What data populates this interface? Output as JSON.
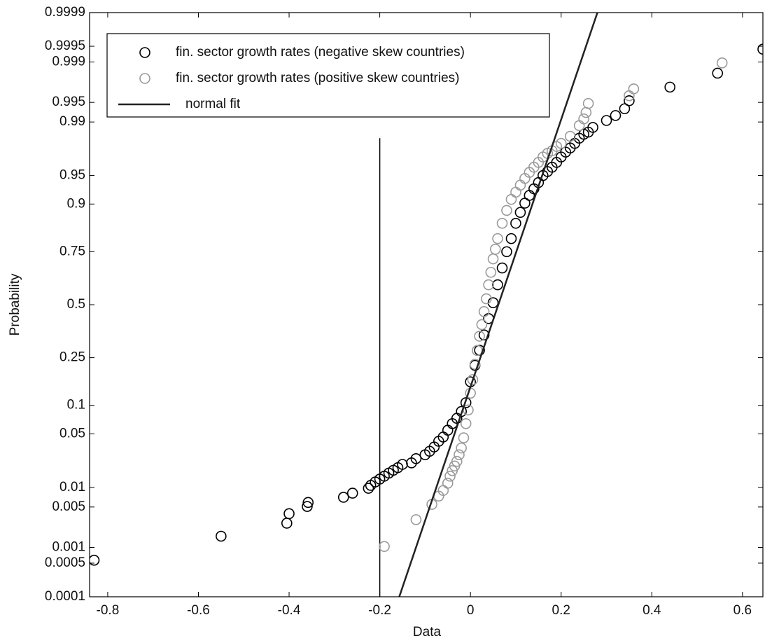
{
  "chart_data": {
    "type": "scatter",
    "yscale": "probit",
    "xlabel": "Data",
    "ylabel": "Probability",
    "xlim": [
      -0.84,
      0.645
    ],
    "xticks": [
      -0.8,
      -0.6,
      -0.4,
      -0.2,
      0,
      0.2,
      0.4,
      0.6
    ],
    "ylim": [
      0.0001,
      0.9999
    ],
    "yticks": [
      0.0001,
      0.0005,
      0.001,
      0.005,
      0.01,
      0.05,
      0.1,
      0.25,
      0.5,
      0.75,
      0.9,
      0.95,
      0.99,
      0.995,
      0.999,
      0.9995,
      0.9999
    ],
    "legend": "upper left",
    "reference_line": {
      "x": -0.2,
      "ylim": [
        0.0001,
        0.983
      ],
      "color": "#000000"
    },
    "series": [
      {
        "name": "fin. sector growth rates (negative skew countries)",
        "style": "marker",
        "color": "#000000",
        "x": [
          -0.83,
          -0.55,
          -0.405,
          -0.4,
          -0.36,
          -0.358,
          -0.28,
          -0.26,
          -0.225,
          -0.22,
          -0.21,
          -0.2,
          -0.19,
          -0.18,
          -0.17,
          -0.16,
          -0.15,
          -0.13,
          -0.12,
          -0.1,
          -0.09,
          -0.08,
          -0.07,
          -0.06,
          -0.05,
          -0.04,
          -0.03,
          -0.02,
          -0.01,
          0,
          0.01,
          0.02,
          0.03,
          0.04,
          0.05,
          0.06,
          0.07,
          0.08,
          0.09,
          0.1,
          0.11,
          0.12,
          0.13,
          0.14,
          0.15,
          0.16,
          0.17,
          0.18,
          0.19,
          0.2,
          0.21,
          0.22,
          0.23,
          0.24,
          0.25,
          0.26,
          0.27,
          0.3,
          0.32,
          0.34,
          0.35,
          0.44,
          0.545,
          0.645
        ],
        "values": [
          0.00057,
          0.0016,
          0.0027,
          0.0039,
          0.0051,
          0.0059,
          0.0071,
          0.0082,
          0.0097,
          0.0107,
          0.012,
          0.0132,
          0.0145,
          0.016,
          0.0175,
          0.019,
          0.021,
          0.022,
          0.025,
          0.028,
          0.031,
          0.035,
          0.041,
          0.046,
          0.055,
          0.065,
          0.074,
          0.087,
          0.106,
          0.163,
          0.22,
          0.281,
          0.35,
          0.43,
          0.51,
          0.6,
          0.68,
          0.75,
          0.8,
          0.85,
          0.88,
          0.902,
          0.918,
          0.93,
          0.94,
          0.95,
          0.955,
          0.96,
          0.965,
          0.97,
          0.974,
          0.977,
          0.98,
          0.983,
          0.985,
          0.986,
          0.988,
          0.9905,
          0.992,
          0.9937,
          0.9953,
          0.9972,
          0.9984,
          0.99943
        ]
      },
      {
        "name": "fin. sector growth rates (positive skew countries)",
        "style": "marker",
        "color": "#9a9a9a",
        "x": [
          -0.19,
          -0.12,
          -0.085,
          -0.07,
          -0.06,
          -0.05,
          -0.045,
          -0.04,
          -0.035,
          -0.03,
          -0.025,
          -0.02,
          -0.015,
          -0.01,
          -0.005,
          0,
          0.005,
          0.01,
          0.015,
          0.02,
          0.025,
          0.03,
          0.035,
          0.04,
          0.045,
          0.05,
          0.055,
          0.06,
          0.07,
          0.08,
          0.09,
          0.1,
          0.11,
          0.12,
          0.13,
          0.14,
          0.15,
          0.16,
          0.17,
          0.18,
          0.19,
          0.2,
          0.22,
          0.24,
          0.25,
          0.255,
          0.26,
          0.35,
          0.36,
          0.555
        ],
        "values": [
          0.00104,
          0.0031,
          0.0055,
          0.0074,
          0.009,
          0.0115,
          0.0145,
          0.0173,
          0.02,
          0.023,
          0.028,
          0.034,
          0.045,
          0.065,
          0.09,
          0.13,
          0.17,
          0.224,
          0.28,
          0.344,
          0.4,
          0.465,
          0.53,
          0.6,
          0.66,
          0.72,
          0.76,
          0.8,
          0.85,
          0.885,
          0.91,
          0.924,
          0.936,
          0.946,
          0.954,
          0.96,
          0.965,
          0.97,
          0.973,
          0.975,
          0.978,
          0.98,
          0.984,
          0.9887,
          0.991,
          0.9928,
          0.9948,
          0.9961,
          0.997,
          0.99896
        ]
      },
      {
        "name": "normal fit",
        "style": "line",
        "color": "#222222",
        "x": [
          -0.157,
          0.28
        ],
        "values": [
          0.0001,
          0.9999
        ]
      }
    ]
  }
}
